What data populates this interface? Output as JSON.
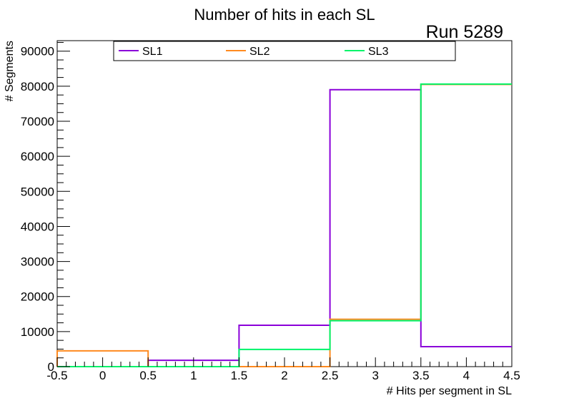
{
  "chart_data": {
    "type": "histogram",
    "title": "Number of hits in each SL",
    "annotation": "Run 5289",
    "xlabel": "# Hits per segment in SL",
    "ylabel": "# Segments",
    "xlim": [
      -0.5,
      4.5
    ],
    "ylim": [
      0,
      93000
    ],
    "x_ticks": [
      "-0.5",
      "0",
      "0.5",
      "1",
      "1.5",
      "2",
      "2.5",
      "3",
      "3.5",
      "4",
      "4.5"
    ],
    "y_ticks": [
      "0",
      "10000",
      "20000",
      "30000",
      "40000",
      "50000",
      "60000",
      "70000",
      "80000",
      "90000"
    ],
    "bin_edges": [
      -0.5,
      0.5,
      1.5,
      2.5,
      3.5,
      4.5
    ],
    "legend_placement": "top",
    "series": [
      {
        "name": "SL1",
        "color": "#8a00d9",
        "values": [
          0,
          1800,
          11800,
          79000,
          5700
        ]
      },
      {
        "name": "SL2",
        "color": "#ff8a1f",
        "values": [
          4500,
          0,
          0,
          13500,
          80500
        ]
      },
      {
        "name": "SL3",
        "color": "#00f46a",
        "values": [
          0,
          0,
          4900,
          13100,
          80600
        ]
      }
    ]
  }
}
